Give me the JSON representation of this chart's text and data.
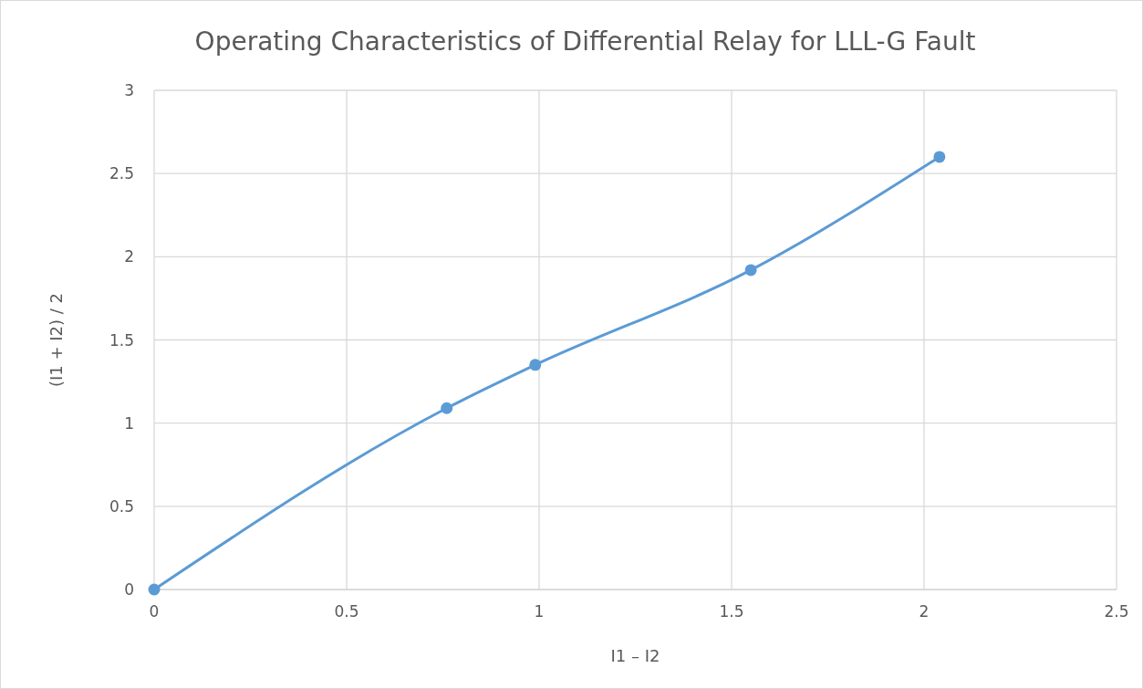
{
  "chart_data": {
    "type": "line",
    "title": "Operating Characteristics of Differential Relay for LLL-G Fault",
    "xlabel": "I1 – I2",
    "ylabel": "(I1 + I2) / 2",
    "x": [
      0,
      0.76,
      0.99,
      1.55,
      2.04
    ],
    "series": [
      {
        "color": "#5b9bd5",
        "values": [
          0,
          1.09,
          1.35,
          1.92,
          2.6
        ]
      }
    ],
    "xlim": [
      0,
      2.5
    ],
    "xticks": [
      0,
      0.5,
      1,
      1.5,
      2,
      2.5
    ],
    "ylim": [
      0,
      3
    ],
    "yticks": [
      0,
      0.5,
      1,
      1.5,
      2,
      2.5,
      3
    ],
    "grid": true,
    "marker": "circle",
    "line_style": "solid"
  }
}
